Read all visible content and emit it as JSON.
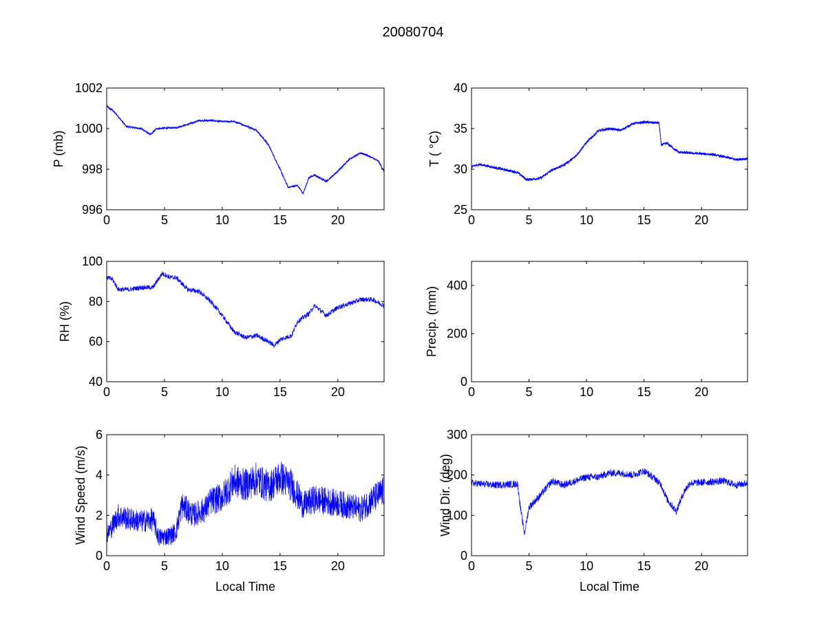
{
  "title": "20080704",
  "chart_data": [
    {
      "type": "line",
      "id": "pressure",
      "ylabel": "P (mb)",
      "xlabel": "",
      "xlim": [
        0,
        24
      ],
      "ylim": [
        996,
        1002
      ],
      "xticks": [
        0,
        5,
        10,
        15,
        20
      ],
      "yticks": [
        996,
        998,
        1000,
        1002
      ],
      "noise": 0.04,
      "x": [
        0,
        0.5,
        1,
        1.7,
        3,
        3.8,
        4.3,
        6,
        7,
        8,
        9,
        10,
        11,
        12,
        13,
        14,
        15,
        15.7,
        16.5,
        17,
        17.5,
        18,
        19,
        20,
        21,
        22,
        22.5,
        23.5,
        24
      ],
      "y": [
        1001.1,
        1000.9,
        1000.6,
        1000.1,
        1000.0,
        999.7,
        1000.0,
        1000.05,
        1000.2,
        1000.4,
        1000.4,
        1000.35,
        1000.35,
        1000.15,
        999.9,
        999.2,
        998.0,
        997.1,
        997.2,
        996.8,
        997.6,
        997.7,
        997.4,
        997.9,
        998.5,
        998.8,
        998.7,
        998.4,
        997.9
      ]
    },
    {
      "type": "line",
      "id": "temperature",
      "ylabel": "T ( °C)",
      "xlabel": "",
      "xlim": [
        0,
        24
      ],
      "ylim": [
        25,
        40
      ],
      "xticks": [
        0,
        5,
        10,
        15,
        20
      ],
      "yticks": [
        25,
        30,
        35,
        40
      ],
      "noise": 0.15,
      "x": [
        0,
        0.7,
        2,
        3,
        4,
        4.8,
        5.5,
        6,
        7,
        8,
        9,
        10,
        11,
        12,
        13,
        14,
        15,
        16.3,
        16.5,
        17,
        18,
        19,
        21,
        23,
        24
      ],
      "y": [
        30.3,
        30.6,
        30.2,
        29.9,
        29.6,
        28.7,
        28.8,
        28.9,
        29.9,
        30.5,
        31.5,
        33.3,
        34.7,
        35.0,
        34.8,
        35.6,
        35.8,
        35.7,
        33.0,
        33.2,
        32.1,
        32.0,
        31.8,
        31.2,
        31.3
      ]
    },
    {
      "type": "line",
      "id": "humidity",
      "ylabel": "RH (%)",
      "xlabel": "",
      "xlim": [
        0,
        24
      ],
      "ylim": [
        40,
        100
      ],
      "xticks": [
        0,
        5,
        10,
        15,
        20
      ],
      "yticks": [
        40,
        60,
        80,
        100
      ],
      "noise": 1.2,
      "x": [
        0,
        0.5,
        1,
        2,
        3,
        4,
        4.8,
        5.5,
        6,
        7,
        8,
        9,
        10,
        11,
        12,
        13,
        14,
        14.5,
        15,
        16,
        16.5,
        17.5,
        18,
        19,
        20,
        22,
        23,
        24
      ],
      "y": [
        92,
        91,
        86,
        86,
        87,
        87,
        94,
        92,
        92,
        86,
        85,
        80,
        73,
        65,
        62,
        63,
        60,
        58,
        61,
        63,
        70,
        74,
        78,
        73,
        77,
        81,
        81,
        78
      ]
    },
    {
      "type": "line",
      "id": "precipitation",
      "ylabel": "Precip. (mm)",
      "xlabel": "",
      "xlim": [
        0,
        24
      ],
      "ylim": [
        0,
        500
      ],
      "xticks": [
        0,
        5,
        10,
        15,
        20
      ],
      "yticks": [
        0,
        200,
        400
      ],
      "noise": 0,
      "x": [
        0,
        24
      ],
      "y": [
        0,
        0
      ]
    },
    {
      "type": "line",
      "id": "wind-speed",
      "ylabel": "Wind Speed (m/s)",
      "xlabel": "Local Time",
      "xlim": [
        0,
        24
      ],
      "ylim": [
        0,
        6
      ],
      "xticks": [
        0,
        5,
        10,
        15,
        20
      ],
      "yticks": [
        0,
        2,
        4,
        6
      ],
      "noise": 0.55,
      "x": [
        0,
        0.5,
        1,
        2,
        3,
        4,
        4.5,
        5.5,
        6,
        6.5,
        7.5,
        8.5,
        9,
        10,
        11,
        12,
        13,
        14,
        15,
        16,
        17,
        18,
        20,
        22,
        23,
        24
      ],
      "y": [
        1.0,
        1.5,
        2.0,
        1.8,
        1.7,
        1.8,
        0.9,
        1.0,
        1.2,
        2.5,
        2.0,
        2.3,
        2.7,
        2.9,
        3.7,
        3.5,
        3.8,
        3.4,
        3.9,
        3.5,
        2.5,
        2.8,
        2.6,
        2.3,
        2.8,
        3.2
      ]
    },
    {
      "type": "line",
      "id": "wind-direction",
      "ylabel": "Wind Dir. (deg)",
      "xlabel": "Local Time",
      "xlim": [
        0,
        24
      ],
      "ylim": [
        0,
        300
      ],
      "xticks": [
        0,
        5,
        10,
        15,
        20
      ],
      "yticks": [
        0,
        100,
        200,
        300
      ],
      "noise": 9,
      "x": [
        0,
        2,
        4,
        4.3,
        4.6,
        5,
        6,
        7,
        8,
        9,
        10,
        11,
        12,
        13,
        14,
        15,
        16,
        16.5,
        17,
        17.8,
        18.5,
        19,
        22,
        23,
        24
      ],
      "y": [
        180,
        175,
        178,
        110,
        55,
        120,
        150,
        185,
        175,
        185,
        195,
        195,
        205,
        205,
        200,
        210,
        190,
        175,
        140,
        110,
        160,
        180,
        185,
        175,
        180
      ]
    }
  ],
  "colors": {
    "line": "#0000ff",
    "axes": "#000000"
  }
}
